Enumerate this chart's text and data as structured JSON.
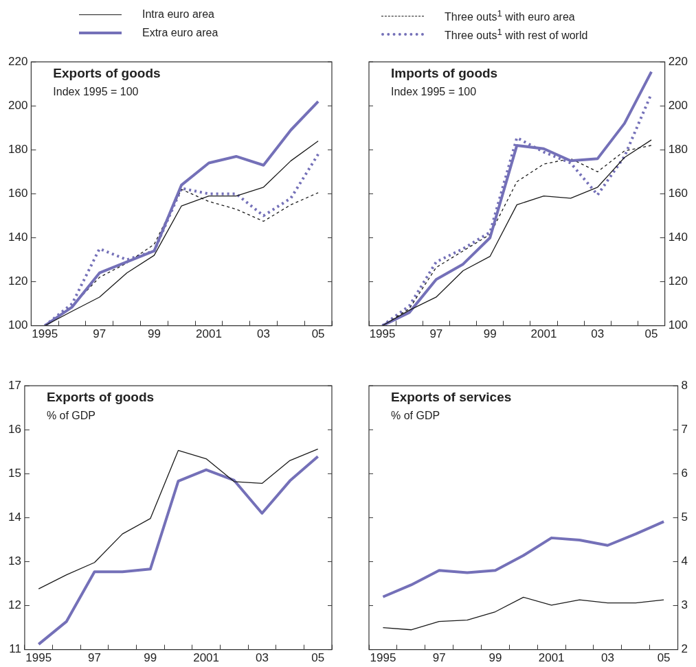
{
  "chart_data": [
    {
      "type": "line",
      "title": "Exports of goods",
      "subtitle": "Index 1995 = 100",
      "legend": "top",
      "categories": [
        "1995",
        null,
        "97",
        null,
        "99",
        null,
        "2001",
        null,
        "03",
        null,
        "05"
      ],
      "ylim": [
        100,
        220
      ],
      "yticks": [
        100,
        120,
        140,
        160,
        180,
        200,
        220
      ],
      "grid": false,
      "series": [
        {
          "name": "Intra euro area",
          "color": "#1a1a1a",
          "line_style": "solid",
          "values": [
            100,
            106.6,
            113,
            124,
            132,
            154.5,
            159,
            159,
            163,
            175,
            184
          ]
        },
        {
          "name": "Extra euro area",
          "color": "#7470b8",
          "line_style": "solid",
          "values": [
            100,
            108.5,
            124,
            129,
            134,
            164,
            174,
            177,
            173,
            189,
            202
          ]
        },
        {
          "name": "Three outs$^{1}$ with euro area",
          "color": "#1a1a1a",
          "line_style": "dashed",
          "values": [
            100,
            109,
            122,
            128.5,
            137,
            162,
            156.5,
            153,
            147.5,
            155,
            160.5
          ]
        },
        {
          "name": "Three outs$^{1}$ with rest of world",
          "color": "#7470b8",
          "line_style": "dotted",
          "values": [
            100,
            110,
            135,
            130,
            134,
            162.5,
            160,
            160,
            150,
            158,
            178
          ]
        }
      ]
    },
    {
      "type": "line",
      "title": "Imports of goods",
      "subtitle": "Index 1995 = 100",
      "categories": [
        "1995",
        null,
        "97",
        null,
        "99",
        null,
        "2001",
        null,
        "03",
        null,
        "05"
      ],
      "ylim": [
        100,
        220
      ],
      "yticks": [
        100,
        120,
        140,
        160,
        180,
        200,
        220
      ],
      "grid": false,
      "series": [
        {
          "color": "#1a1a1a",
          "line_style": "solid",
          "values": [
            100,
            107,
            113,
            125,
            131.5,
            155,
            159,
            158,
            163,
            176.5,
            184.5
          ]
        },
        {
          "color": "#7470b8",
          "line_style": "solid",
          "values": [
            100,
            106,
            121,
            128,
            140,
            182,
            180.5,
            175,
            176,
            192,
            215.5
          ]
        },
        {
          "color": "#1a1a1a",
          "line_style": "dashed",
          "values": [
            100,
            107.7,
            126.5,
            134,
            141.5,
            165.5,
            173.5,
            176,
            170,
            179.5,
            182
          ]
        },
        {
          "color": "#7470b8",
          "line_style": "dotted",
          "values": [
            100,
            109,
            129,
            135,
            142.5,
            185.5,
            179,
            174,
            159.5,
            177,
            205.5
          ]
        }
      ]
    },
    {
      "type": "line",
      "title": "Exports of goods",
      "subtitle": "% of GDP",
      "categories": [
        "1995",
        null,
        "97",
        null,
        "99",
        null,
        "2001",
        null,
        "03",
        null,
        "05"
      ],
      "ylim": [
        11,
        17
      ],
      "yticks": [
        11,
        12,
        13,
        14,
        15,
        16,
        17
      ],
      "grid": false,
      "series": [
        {
          "color": "#1a1a1a",
          "line_style": "solid",
          "values": [
            12.38,
            12.7,
            12.98,
            13.63,
            13.98,
            15.53,
            15.34,
            14.82,
            14.78,
            15.3,
            15.56
          ]
        },
        {
          "color": "#7470b8",
          "line_style": "solid",
          "values": [
            11.12,
            11.64,
            12.77,
            12.77,
            12.83,
            14.83,
            15.09,
            14.85,
            14.1,
            14.84,
            15.39
          ]
        }
      ]
    },
    {
      "type": "line",
      "title": "Exports of services",
      "subtitle": "% of GDP",
      "categories": [
        "1995",
        null,
        "97",
        null,
        "99",
        null,
        "2001",
        null,
        "03",
        null,
        "05"
      ],
      "ylim": [
        2,
        8
      ],
      "yticks": [
        2,
        3,
        4,
        5,
        6,
        7,
        8
      ],
      "grid": false,
      "series": [
        {
          "color": "#1a1a1a",
          "line_style": "solid",
          "values": [
            2.5,
            2.45,
            2.64,
            2.67,
            2.86,
            3.19,
            3.01,
            3.13,
            3.06,
            3.06,
            3.13
          ]
        },
        {
          "color": "#7470b8",
          "line_style": "solid",
          "values": [
            3.2,
            3.47,
            3.8,
            3.75,
            3.8,
            4.14,
            4.54,
            4.49,
            4.37,
            4.63,
            4.91
          ]
        }
      ]
    }
  ]
}
